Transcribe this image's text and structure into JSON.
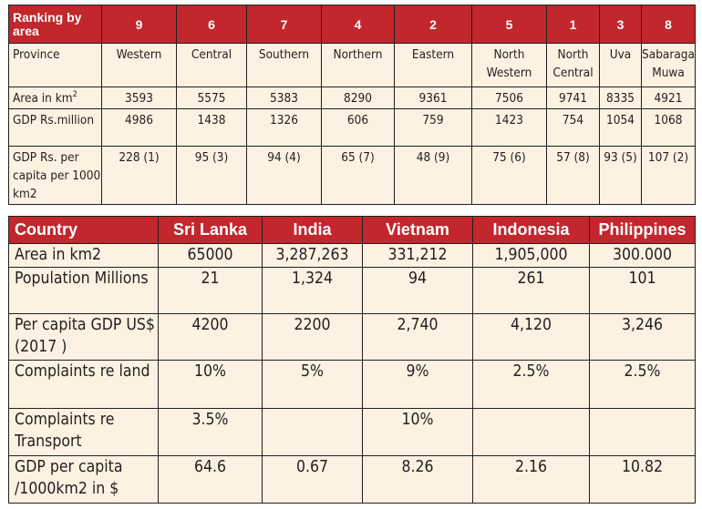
{
  "table1": {
    "header_label": "Ranking by area",
    "ranks": [
      "9",
      "6",
      "7",
      "4",
      "2",
      "5",
      "1",
      "3",
      "8"
    ],
    "rows": [
      {
        "label": "Province",
        "cells": [
          "Western",
          "Central",
          "Southern",
          "Northern",
          "Eastern",
          "North Western",
          "North Central",
          "Uva",
          "Sabaraga Muwa"
        ]
      },
      {
        "label": "Area in km",
        "label_sup": "2",
        "cells": [
          "3593",
          "5575",
          "5383",
          "8290",
          "9361",
          "7506",
          "9741",
          "8335",
          "4921"
        ]
      },
      {
        "label": "GDP Rs.million",
        "cells": [
          "4986",
          "1438",
          "1326",
          "606",
          "759",
          "1423",
          "754",
          "1054",
          "1068"
        ]
      },
      {
        "label": "GDP Rs. per capita per 1000 km2",
        "cells": [
          "228 (1)",
          "95 (3)",
          "94 (4)",
          "65 (7)",
          "48 (9)",
          "75 (6)",
          "57 (8)",
          "93 (5)",
          "107 (2)"
        ]
      }
    ]
  },
  "table2": {
    "header_label": "Country",
    "countries": [
      "Sri Lanka",
      "India",
      "Vietnam",
      "Indonesia",
      "Philippines"
    ],
    "rows": [
      {
        "label": "Area in km2",
        "cells": [
          "65000",
          "3,287,263",
          "331,212",
          "1,905,000",
          "300.000"
        ]
      },
      {
        "label": "Population Millions",
        "cells": [
          "21",
          "1,324",
          "94",
          "261",
          "101"
        ]
      },
      {
        "label": "Per capita GDP US$ (2017 )",
        "cells": [
          "4200",
          "2200",
          "2,740",
          "4,120",
          "3,246"
        ]
      },
      {
        "label": "Complaints re land",
        "cells": [
          "10%",
          "5%",
          "9%",
          "2.5%",
          "2.5%"
        ]
      },
      {
        "label": "Complaints re Transport",
        "cells": [
          "3.5%",
          "",
          "10%",
          "",
          ""
        ]
      },
      {
        "label": "GDP per capita /1000km2 in $",
        "cells": [
          "64.6",
          "0.67",
          "8.26",
          "2.16",
          "10.82"
        ]
      }
    ]
  }
}
